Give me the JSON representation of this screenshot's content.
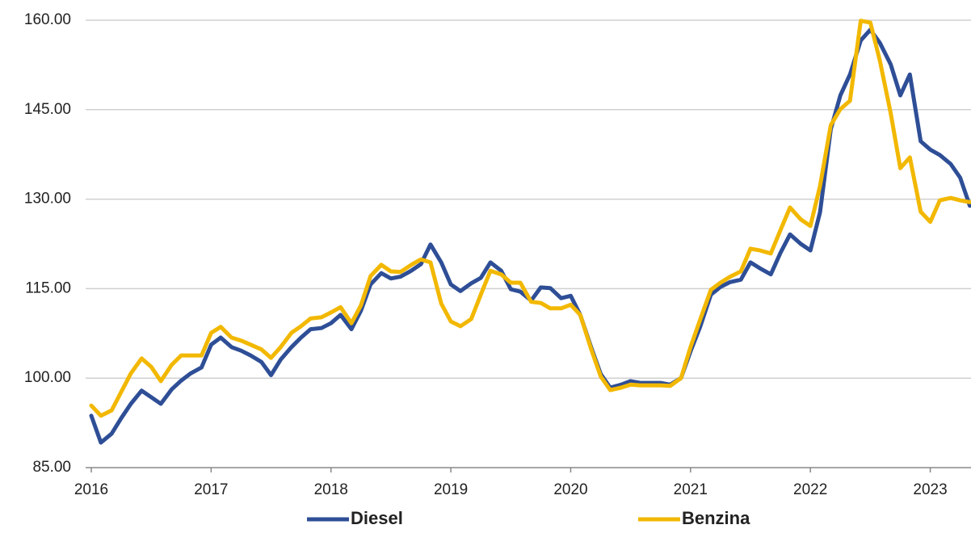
{
  "chart_data": {
    "type": "line",
    "x": [
      2016,
      2016.08,
      2016.17,
      2016.25,
      2016.33,
      2016.42,
      2016.5,
      2016.58,
      2016.67,
      2016.75,
      2016.83,
      2016.92,
      2017,
      2017.08,
      2017.17,
      2017.25,
      2017.33,
      2017.42,
      2017.5,
      2017.58,
      2017.67,
      2017.75,
      2017.83,
      2017.92,
      2018,
      2018.08,
      2018.17,
      2018.25,
      2018.33,
      2018.42,
      2018.5,
      2018.58,
      2018.67,
      2018.75,
      2018.83,
      2018.92,
      2019,
      2019.08,
      2019.17,
      2019.25,
      2019.33,
      2019.42,
      2019.5,
      2019.58,
      2019.67,
      2019.75,
      2019.83,
      2019.92,
      2020,
      2020.08,
      2020.17,
      2020.25,
      2020.33,
      2020.42,
      2020.5,
      2020.58,
      2020.67,
      2020.75,
      2020.83,
      2020.92,
      2021,
      2021.08,
      2021.17,
      2021.25,
      2021.33,
      2021.42,
      2021.5,
      2021.58,
      2021.67,
      2021.75,
      2021.83,
      2021.92,
      2022,
      2022.08,
      2022.17,
      2022.25,
      2022.33,
      2022.42,
      2022.5,
      2022.58,
      2022.67,
      2022.75,
      2022.83,
      2022.92,
      2023,
      2023.08,
      2023.17,
      2023.25,
      2023.33
    ],
    "series": [
      {
        "name": "Diesel",
        "color": "#2e4e96",
        "values": [
          93.7,
          89.2,
          90.7,
          93.3,
          95.7,
          97.9,
          96.8,
          95.7,
          98.1,
          99.6,
          100.8,
          101.8,
          105.6,
          106.8,
          105.2,
          104.6,
          103.8,
          102.7,
          100.5,
          103.1,
          105.2,
          106.8,
          108.2,
          108.4,
          109.2,
          110.6,
          108.2,
          111.3,
          115.7,
          117.6,
          116.7,
          117.0,
          118.0,
          119.1,
          122.4,
          119.4,
          115.7,
          114.6,
          115.9,
          116.8,
          119.4,
          118.0,
          114.9,
          114.5,
          113.0,
          115.2,
          115.1,
          113.4,
          113.8,
          110.6,
          105.2,
          100.7,
          98.4,
          98.9,
          99.5,
          99.2,
          99.2,
          99.2,
          98.9,
          100.0,
          104.5,
          108.6,
          114.0,
          115.3,
          116.1,
          116.5,
          119.4,
          118.4,
          117.4,
          121.0,
          124.1,
          122.5,
          121.4,
          127.8,
          141.7,
          147.4,
          150.9,
          156.6,
          158.4,
          156.2,
          152.6,
          147.4,
          150.9,
          139.7,
          138.3,
          137.4,
          135.9,
          133.6,
          128.9
        ]
      },
      {
        "name": "Benzina",
        "color": "#f2b800",
        "values": [
          95.4,
          93.7,
          94.6,
          97.7,
          100.8,
          103.3,
          101.9,
          99.5,
          102.2,
          103.8,
          103.8,
          103.8,
          107.6,
          108.6,
          106.8,
          106.3,
          105.6,
          104.8,
          103.4,
          105.2,
          107.6,
          108.7,
          110.0,
          110.2,
          111.0,
          111.9,
          109.2,
          112.2,
          117.1,
          119.0,
          117.9,
          117.8,
          119.0,
          119.9,
          119.4,
          112.5,
          109.5,
          108.7,
          109.9,
          114.0,
          118.0,
          117.4,
          116.0,
          116.0,
          112.8,
          112.6,
          111.7,
          111.7,
          112.3,
          110.6,
          104.9,
          100.3,
          98.0,
          98.4,
          98.9,
          98.8,
          98.8,
          98.8,
          98.7,
          100.0,
          105.2,
          109.8,
          114.8,
          116.0,
          117.0,
          117.9,
          121.7,
          121.4,
          120.9,
          124.8,
          128.6,
          126.6,
          125.5,
          132.2,
          142.4,
          145.1,
          146.5,
          159.9,
          159.6,
          153.2,
          144.4,
          135.2,
          137.0,
          127.9,
          126.2,
          129.8,
          130.2,
          129.8,
          129.5
        ]
      }
    ],
    "xlim": [
      2016,
      2023.34
    ],
    "xticks": [
      2016,
      2017,
      2018,
      2019,
      2020,
      2021,
      2022,
      2023
    ],
    "ylim": [
      85,
      160
    ],
    "yticks": [
      {
        "value": 85,
        "label": "85.00"
      },
      {
        "value": 100,
        "label": "100.00"
      },
      {
        "value": 115,
        "label": "115.00"
      },
      {
        "value": 130,
        "label": "130.00"
      },
      {
        "value": 145,
        "label": "145.00"
      },
      {
        "value": 160,
        "label": "160.00"
      }
    ],
    "grid": true,
    "legend": "bottom"
  }
}
